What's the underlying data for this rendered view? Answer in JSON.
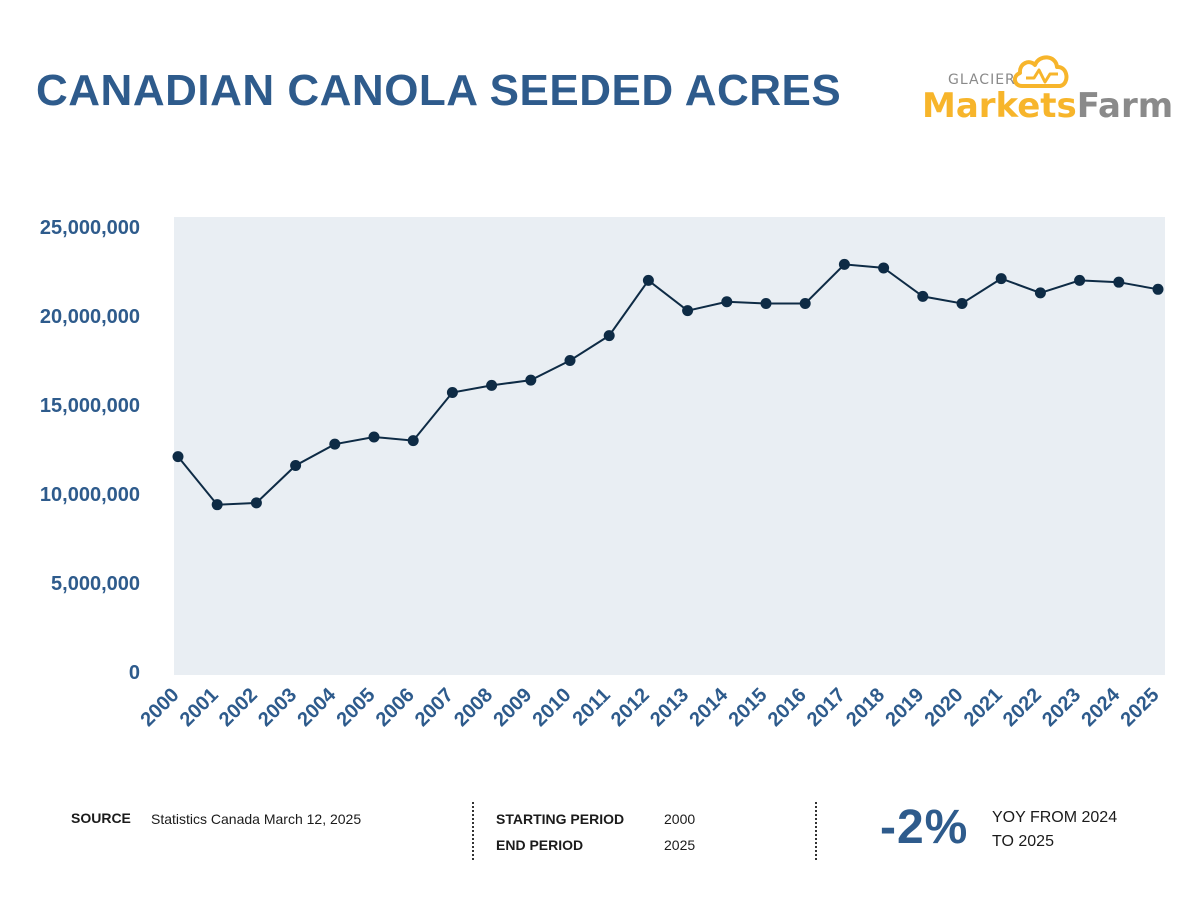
{
  "header": {
    "title": "CANADIAN CANOLA SEEDED ACRES",
    "logo_top": "GLACIER",
    "logo_brand_1": "Markets",
    "logo_brand_2": "Farm"
  },
  "colors": {
    "title": "#2e5b8c",
    "plot_bg": "#e9eef3",
    "line": "#0e2b45",
    "logo_orange": "#f7b52b",
    "logo_gray": "#8a8a8a"
  },
  "chart_data": {
    "type": "line",
    "title": "CANADIAN CANOLA SEEDED ACRES",
    "xlabel": "",
    "ylabel": "",
    "ylim": [
      0,
      25000000
    ],
    "y_ticks": [
      0,
      5000000,
      10000000,
      15000000,
      20000000,
      25000000
    ],
    "y_tick_labels": [
      "0",
      "5,000,000",
      "10,000,000",
      "15,000,000",
      "20,000,000",
      "25,000,000"
    ],
    "grid": false,
    "categories": [
      "2000",
      "2001",
      "2002",
      "2003",
      "2004",
      "2005",
      "2006",
      "2007",
      "2008",
      "2009",
      "2010",
      "2011",
      "2012",
      "2013",
      "2014",
      "2015",
      "2016",
      "2017",
      "2018",
      "2019",
      "2020",
      "2021",
      "2022",
      "2023",
      "2024",
      "2025"
    ],
    "series": [
      {
        "values": [
          12100000,
          9400000,
          9500000,
          11600000,
          12800000,
          13200000,
          13000000,
          15700000,
          16100000,
          16400000,
          17500000,
          18900000,
          22000000,
          20300000,
          20800000,
          20700000,
          20700000,
          22900000,
          22700000,
          21100000,
          20700000,
          22100000,
          21300000,
          22000000,
          21900000,
          21500000
        ]
      }
    ]
  },
  "footer": {
    "source_label": "SOURCE",
    "source_value": "Statistics Canada March 12, 2025",
    "start_label": "STARTING PERIOD",
    "start_value": "2000",
    "end_label": "END PERIOD",
    "end_value": "2025",
    "yoy_value": "-2%",
    "yoy_text": "YOY FROM 2024 TO 2025"
  }
}
